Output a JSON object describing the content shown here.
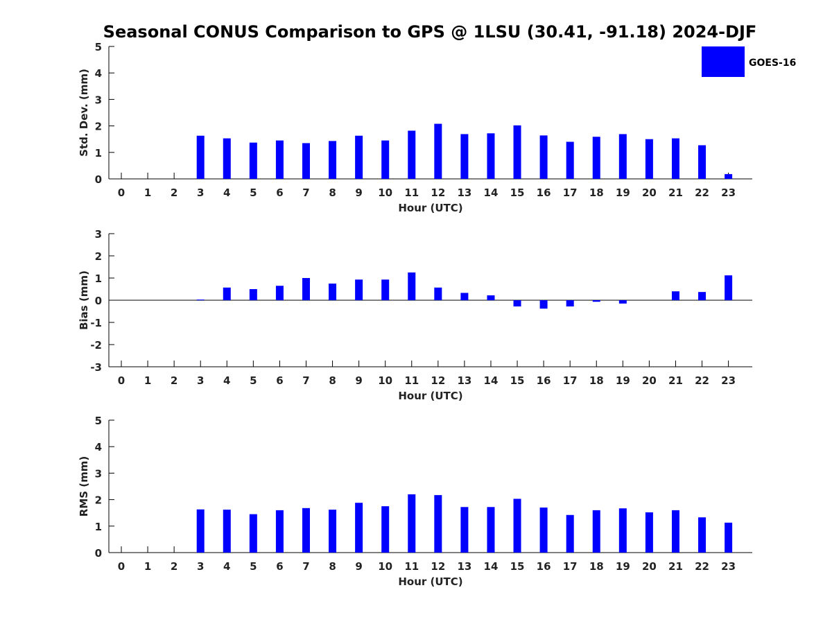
{
  "chart_data": {
    "title": "Seasonal CONUS Comparison to GPS @ 1LSU (30.41, -91.18) 2024-DJF",
    "legend": [
      "GOES-16"
    ],
    "legend_position": "top-right",
    "bar_color": "#0000ff",
    "panels": [
      {
        "type": "bar",
        "xlabel": "Hour (UTC)",
        "ylabel": "Std. Dev. (mm)",
        "ylim": [
          0,
          5
        ],
        "yticks": [
          0,
          1,
          2,
          3,
          4,
          5
        ],
        "categories": [
          "0",
          "1",
          "2",
          "3",
          "4",
          "5",
          "6",
          "7",
          "8",
          "9",
          "10",
          "11",
          "12",
          "13",
          "14",
          "15",
          "16",
          "17",
          "18",
          "19",
          "20",
          "21",
          "22",
          "23"
        ],
        "series": [
          {
            "name": "GOES-16",
            "values": [
              null,
              null,
              null,
              1.63,
              1.53,
              1.37,
              1.45,
              1.35,
              1.43,
              1.63,
              1.45,
              1.82,
              2.08,
              1.69,
              1.72,
              2.02,
              1.64,
              1.4,
              1.59,
              1.69,
              1.5,
              1.53,
              1.27,
              0.18
            ]
          }
        ]
      },
      {
        "type": "bar",
        "xlabel": "Hour (UTC)",
        "ylabel": "Bias (mm)",
        "ylim": [
          -3,
          3
        ],
        "yticks": [
          -3,
          -2,
          -1,
          0,
          1,
          2,
          3
        ],
        "categories": [
          "0",
          "1",
          "2",
          "3",
          "4",
          "5",
          "6",
          "7",
          "8",
          "9",
          "10",
          "11",
          "12",
          "13",
          "14",
          "15",
          "16",
          "17",
          "18",
          "19",
          "20",
          "21",
          "22",
          "23"
        ],
        "series": [
          {
            "name": "GOES-16",
            "values": [
              null,
              null,
              null,
              0.03,
              0.57,
              0.5,
              0.65,
              1.0,
              0.75,
              0.93,
              0.93,
              1.25,
              0.57,
              0.33,
              0.22,
              -0.28,
              -0.38,
              -0.28,
              -0.07,
              -0.15,
              0.0,
              0.4,
              0.37,
              1.12
            ]
          }
        ]
      },
      {
        "type": "bar",
        "xlabel": "Hour (UTC)",
        "ylabel": "RMS (mm)",
        "ylim": [
          0,
          5
        ],
        "yticks": [
          0,
          1,
          2,
          3,
          4,
          5
        ],
        "categories": [
          "0",
          "1",
          "2",
          "3",
          "4",
          "5",
          "6",
          "7",
          "8",
          "9",
          "10",
          "11",
          "12",
          "13",
          "14",
          "15",
          "16",
          "17",
          "18",
          "19",
          "20",
          "21",
          "22",
          "23"
        ],
        "series": [
          {
            "name": "GOES-16",
            "values": [
              null,
              null,
              null,
              1.63,
              1.62,
              1.45,
              1.6,
              1.68,
              1.62,
              1.88,
              1.75,
              2.2,
              2.17,
              1.72,
              1.72,
              2.03,
              1.7,
              1.42,
              1.6,
              1.67,
              1.52,
              1.6,
              1.33,
              1.13
            ]
          }
        ]
      }
    ]
  }
}
